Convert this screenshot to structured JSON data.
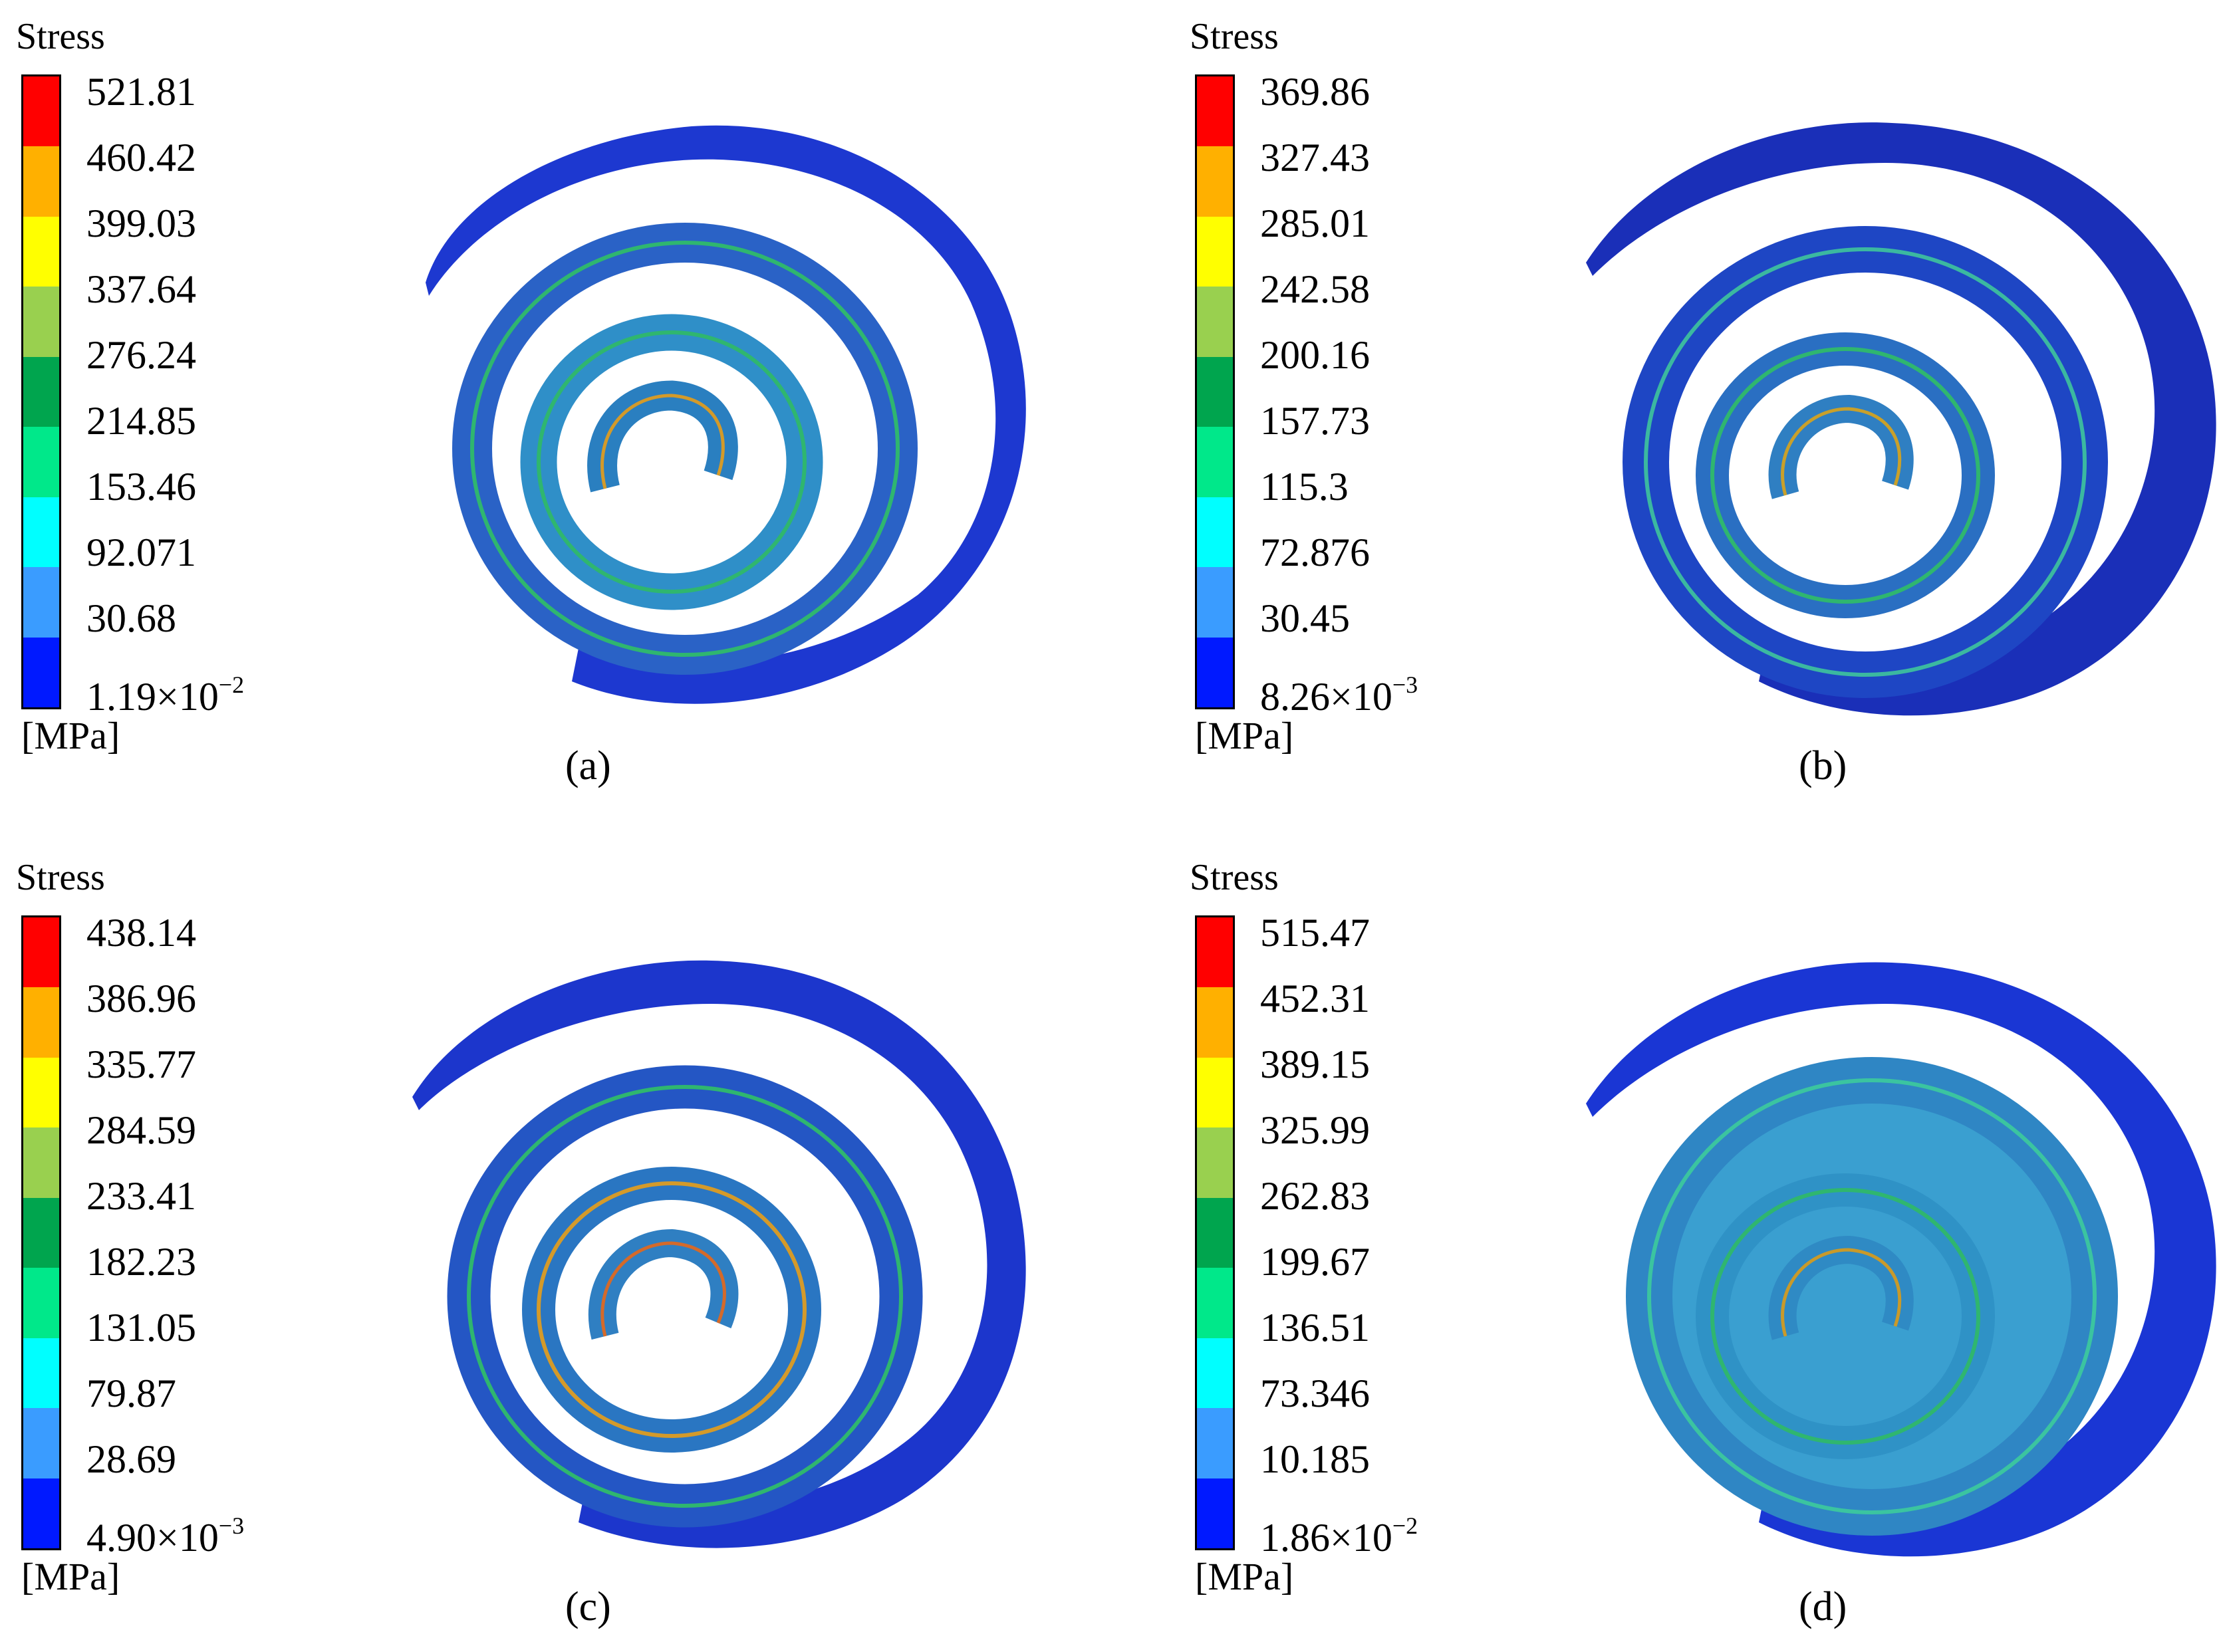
{
  "panels": [
    {
      "id": "a",
      "legend_title": "Stress",
      "unit": "[MPa]",
      "caption": "(a)",
      "ticks": [
        "521.81",
        "460.42",
        "399.03",
        "337.64",
        "276.24",
        "214.85",
        "153.46",
        "92.071",
        "30.68",
        "1.19×10"
      ],
      "min_exponent": "−2",
      "overall_tint": "#1f3fd8"
    },
    {
      "id": "b",
      "legend_title": "Stress",
      "unit": "[MPa]",
      "caption": "(b)",
      "ticks": [
        "369.86",
        "327.43",
        "285.01",
        "242.58",
        "200.16",
        "157.73",
        "115.3",
        "72.876",
        "30.45",
        "8.26×10"
      ],
      "min_exponent": "−3",
      "overall_tint": "#1a33b8"
    },
    {
      "id": "c",
      "legend_title": "Stress",
      "unit": "[MPa]",
      "caption": "(c)",
      "ticks": [
        "438.14",
        "386.96",
        "335.77",
        "284.59",
        "233.41",
        "182.23",
        "131.05",
        "79.87",
        "28.69",
        "4.90×10"
      ],
      "min_exponent": "−3",
      "overall_tint": "#1d3ccd"
    },
    {
      "id": "d",
      "legend_title": "Stress",
      "unit": "[MPa]",
      "caption": "(d)",
      "ticks": [
        "515.47",
        "452.31",
        "389.15",
        "325.99",
        "262.83",
        "199.67",
        "136.51",
        "73.346",
        "10.185",
        "1.86×10"
      ],
      "min_exponent": "−2",
      "overall_tint": "#2f7fc4"
    }
  ],
  "colors": {
    "scale": [
      "#ff0000",
      "#ffb000",
      "#ffff00",
      "#99d04f",
      "#00a54e",
      "#00e88a",
      "#00ffff",
      "#3a9cff",
      "#0019ff"
    ],
    "body_dark": "#1a2fd0",
    "body_mid": "#2a6bc9",
    "body_light": "#3aa3cf",
    "edge_green": "#29b26a",
    "edge_orange": "#d49a2a"
  }
}
